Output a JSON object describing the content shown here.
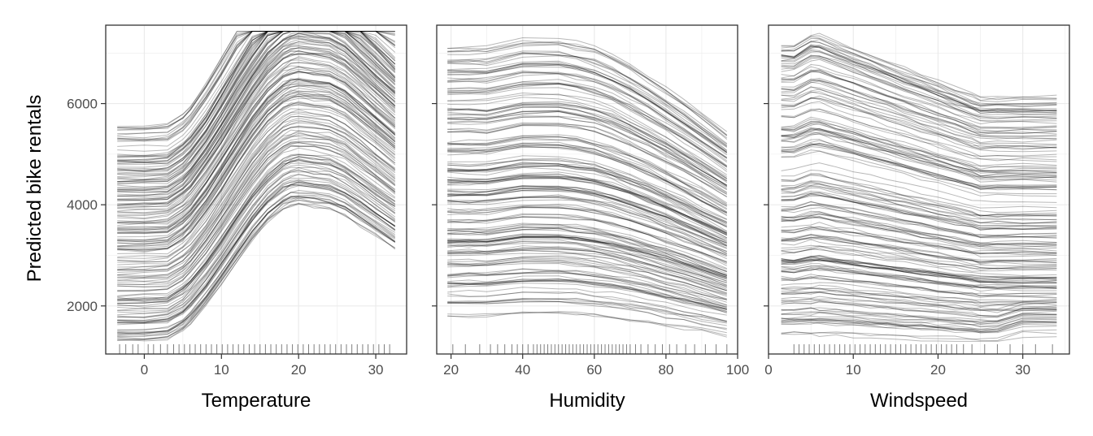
{
  "figure": {
    "ylabel": "Predicted bike rentals",
    "colors": {
      "line": "#000000",
      "grid": "#ebebeb",
      "frame": "#333333",
      "tick_text": "#4d4d4d"
    }
  },
  "chart_data": [
    {
      "type": "line",
      "xlabel": "Temperature",
      "ylabel": "Predicted bike rentals",
      "xlim": [
        -5.0,
        34.0
      ],
      "ylim": [
        1050,
        7550
      ],
      "xticks": [
        0,
        10,
        20,
        30
      ],
      "yticks": [
        2000,
        4000,
        6000
      ],
      "grid": true,
      "legend": "none",
      "curve_description": "ICE curves: rise from about -3 to 20 C, peak near 20-25 C, then decline slightly",
      "profile_x": [
        -3.5,
        0,
        3,
        5,
        6,
        8,
        10,
        12,
        14,
        16,
        18,
        19,
        20,
        22,
        24,
        26,
        28,
        30,
        32.5
      ],
      "levels": [
        1350,
        1500,
        1650,
        1800,
        1950,
        2100,
        2250,
        2400,
        2550,
        2700,
        2850,
        3000,
        3150,
        3300,
        3450,
        3600,
        3750,
        3900,
        4050,
        4200,
        4350,
        4500,
        4650,
        4800,
        4950,
        5100,
        5250,
        5400,
        5550
      ],
      "rug": [
        -3.2,
        -2.4,
        -1.5,
        -0.8,
        0.5,
        1.2,
        2.1,
        3.0,
        3.8,
        4.5,
        5.2,
        5.9,
        6.6,
        7.3,
        8.0,
        8.7,
        9.4,
        10.1,
        10.8,
        11.5,
        12.2,
        12.9,
        13.6,
        14.3,
        15.0,
        15.7,
        16.4,
        17.1,
        17.8,
        18.5,
        19.2,
        19.9,
        20.6,
        21.3,
        22.0,
        22.7,
        23.4,
        24.1,
        24.8,
        25.5,
        26.2,
        26.9,
        27.6,
        28.3,
        29.0,
        29.7,
        30.4,
        31.1,
        31.8
      ]
    },
    {
      "type": "line",
      "xlabel": "Humidity",
      "ylabel": "",
      "xlim": [
        16.0,
        100.0
      ],
      "ylim": [
        1050,
        7550
      ],
      "xticks": [
        20,
        40,
        60,
        80,
        100
      ],
      "yticks": [
        2000,
        4000,
        6000
      ],
      "grid": true,
      "legend": "none",
      "curve_description": "ICE curves: roughly flat until about 60%, then decline toward 97%",
      "profile_x": [
        19,
        25,
        30,
        40,
        50,
        55,
        60,
        65,
        70,
        75,
        80,
        85,
        90,
        97
      ],
      "levels": [
        1850,
        2050,
        2250,
        2450,
        2650,
        2850,
        3050,
        3250,
        3450,
        3650,
        3850,
        4050,
        4250,
        4450,
        4650,
        4850,
        5050,
        5250,
        5450,
        5650,
        5850,
        6050,
        6250,
        6450,
        6650,
        6850,
        7050
      ],
      "rug": [
        20.5,
        24,
        28,
        31,
        33,
        35,
        37,
        38.5,
        40,
        41.5,
        43,
        44,
        45,
        46,
        47,
        48,
        49,
        50,
        51,
        52,
        53,
        54,
        55,
        56,
        57,
        58,
        59,
        60,
        61,
        62,
        63,
        64,
        65,
        66,
        67,
        68,
        69,
        70,
        71.5,
        73,
        75,
        77,
        79,
        81,
        83,
        85.5,
        88,
        91,
        94,
        97
      ]
    },
    {
      "type": "line",
      "xlabel": "Windspeed",
      "ylabel": "",
      "xlim": [
        0.0,
        35.5
      ],
      "ylim": [
        1050,
        7550
      ],
      "xticks": [
        0,
        10,
        20,
        30
      ],
      "yticks": [
        2000,
        4000,
        6000
      ],
      "grid": true,
      "legend": "none",
      "curve_description": "ICE curves: slow decline from low to about 25 km/h, flat afterwards",
      "profile_x": [
        1.5,
        3,
        5,
        6,
        8,
        10,
        12,
        14,
        16,
        18,
        20,
        22,
        24,
        25,
        27,
        30,
        34
      ],
      "levels": [
        1500,
        1700,
        1900,
        2100,
        2300,
        2500,
        2700,
        2900,
        3100,
        3300,
        3500,
        3700,
        3900,
        4100,
        4300,
        4500,
        4700,
        4900,
        5100,
        5300,
        5500,
        5700,
        5900,
        6100,
        6300,
        6500,
        6700,
        6900,
        7100
      ],
      "rug": [
        3.0,
        3.6,
        4.2,
        4.8,
        5.4,
        6.0,
        6.6,
        7.2,
        7.8,
        8.4,
        9.0,
        9.6,
        10.2,
        10.8,
        11.4,
        12.0,
        12.6,
        13.2,
        13.8,
        14.4,
        15.0,
        15.6,
        16.2,
        16.8,
        17.4,
        18.0,
        18.6,
        19.2,
        19.8,
        20.4,
        21.0,
        21.6,
        22.2,
        23.0,
        24.0,
        25.5,
        27.0,
        28.5,
        30.0,
        31.5,
        33.5
      ]
    }
  ]
}
